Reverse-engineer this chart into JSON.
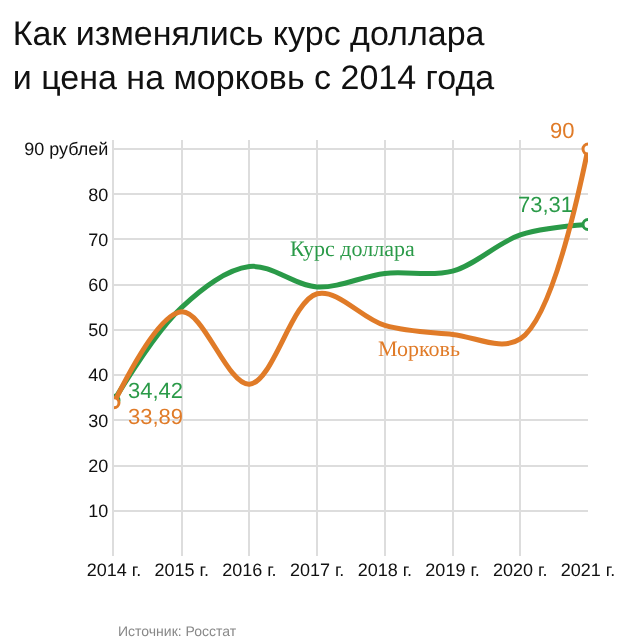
{
  "chart_data": {
    "type": "line",
    "title": "Как изменялись курс доллара\nи цена на морковь с 2014 года",
    "x": [
      2014,
      2015,
      2016,
      2017,
      2018,
      2019,
      2020,
      2021
    ],
    "series": [
      {
        "name": "Курс доллара",
        "color": "#2a9a48",
        "values": [
          34.42,
          55,
          64,
          59.5,
          62.5,
          63,
          71,
          73.31
        ],
        "value_labels": [
          "34,42",
          null,
          null,
          null,
          null,
          null,
          null,
          "73,31"
        ]
      },
      {
        "name": "Морковь",
        "color": "#e07b28",
        "values": [
          33.89,
          54,
          38,
          58,
          51,
          49,
          48,
          90
        ],
        "value_labels": [
          "33,89",
          null,
          null,
          null,
          null,
          null,
          null,
          "90"
        ]
      }
    ],
    "xlim": [
      2014,
      2021
    ],
    "xticks": [
      {
        "value": 2014,
        "label": "2014 г."
      },
      {
        "value": 2015,
        "label": "2015 г."
      },
      {
        "value": 2016,
        "label": "2016 г."
      },
      {
        "value": 2017,
        "label": "2017 г."
      },
      {
        "value": 2018,
        "label": "2018 г."
      },
      {
        "value": 2019,
        "label": "2019 г."
      },
      {
        "value": 2020,
        "label": "2020 г."
      },
      {
        "value": 2021,
        "label": "2021 г."
      }
    ],
    "ylim": [
      0,
      92
    ],
    "yticks": [
      10,
      20,
      30,
      40,
      50,
      60,
      70,
      80,
      {
        "value": 90,
        "label": "90 рублей"
      }
    ],
    "grid": true,
    "legend": false,
    "annotations": [
      "Источник: Росстат"
    ]
  }
}
